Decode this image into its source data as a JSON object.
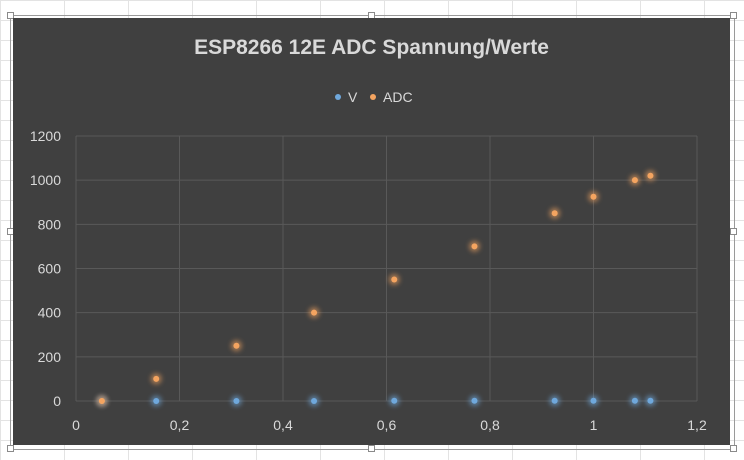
{
  "colors": {
    "chart_bg": "#404040",
    "gridline": "#595959",
    "text": "#d9d9d9",
    "series_v": "#6fa8dc",
    "series_adc": "#f4a460"
  },
  "chart_data": {
    "type": "scatter",
    "title": "ESP8266 12E ADC Spannung/Werte",
    "xlabel": "",
    "ylabel": "",
    "xlim": [
      0,
      1.2
    ],
    "ylim": [
      0,
      1200
    ],
    "x_ticks": [
      "0",
      "0,2",
      "0,4",
      "0,6",
      "0,8",
      "1",
      "1,2"
    ],
    "y_ticks": [
      "0",
      "200",
      "400",
      "600",
      "800",
      "1000",
      "1200"
    ],
    "grid": true,
    "legend_position": "top",
    "series": [
      {
        "name": "V",
        "color": "#6fa8dc",
        "points": [
          [
            0.05,
            0
          ],
          [
            0.155,
            0
          ],
          [
            0.31,
            0
          ],
          [
            0.46,
            0
          ],
          [
            0.615,
            1
          ],
          [
            0.77,
            1
          ],
          [
            0.925,
            1
          ],
          [
            1.0,
            1
          ],
          [
            1.08,
            1
          ],
          [
            1.11,
            1
          ]
        ]
      },
      {
        "name": "ADC",
        "color": "#f4a460",
        "points": [
          [
            0.05,
            0
          ],
          [
            0.155,
            100
          ],
          [
            0.31,
            250
          ],
          [
            0.46,
            400
          ],
          [
            0.615,
            550
          ],
          [
            0.77,
            700
          ],
          [
            0.925,
            850
          ],
          [
            1.0,
            925
          ],
          [
            1.08,
            1000
          ],
          [
            1.11,
            1020
          ]
        ]
      }
    ]
  }
}
